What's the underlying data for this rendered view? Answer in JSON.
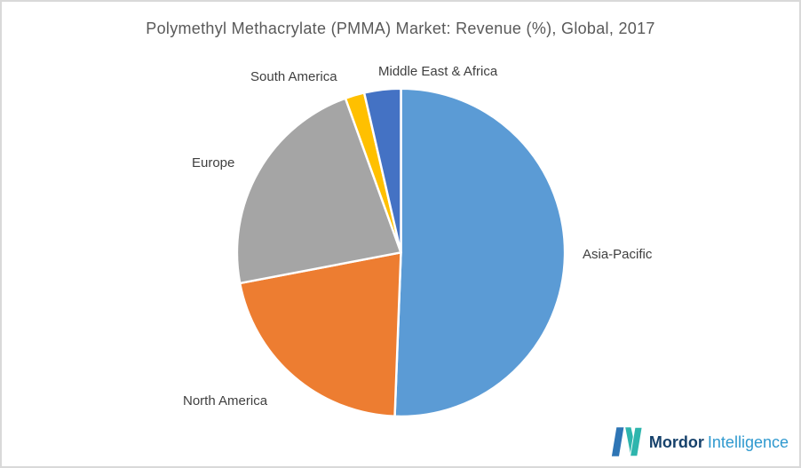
{
  "title": "Polymethyl Methacrylate (PMMA) Market: Revenue (%), Global, 2017",
  "chart_data": {
    "type": "pie",
    "title": "Polymethyl Methacrylate (PMMA) Market: Revenue (%), Global, 2017",
    "categories": [
      "Asia-Pacific",
      "North America",
      "Europe",
      "South America",
      "Middle East & Africa"
    ],
    "values": [
      50.6,
      21.4,
      22.5,
      1.9,
      3.6
    ],
    "unit": "%",
    "colors": [
      "#5B9BD5",
      "#ED7D31",
      "#A5A5A5",
      "#FFC000",
      "#4472C4"
    ],
    "start_angle_deg": 0,
    "direction": "clockwise",
    "slice_separator_color": "#FFFFFF",
    "label_placement": "outside",
    "label_color": "#3F3F3F",
    "title_color": "#595959",
    "legend_position": "none"
  },
  "logo": {
    "brand_bold": "Mordor",
    "brand_light": "Intelligence",
    "colors": {
      "icon_blue": "#2e75b5",
      "icon_teal": "#2eb5ad",
      "text_dark": "#16416b",
      "text_light": "#2f99cf"
    }
  }
}
